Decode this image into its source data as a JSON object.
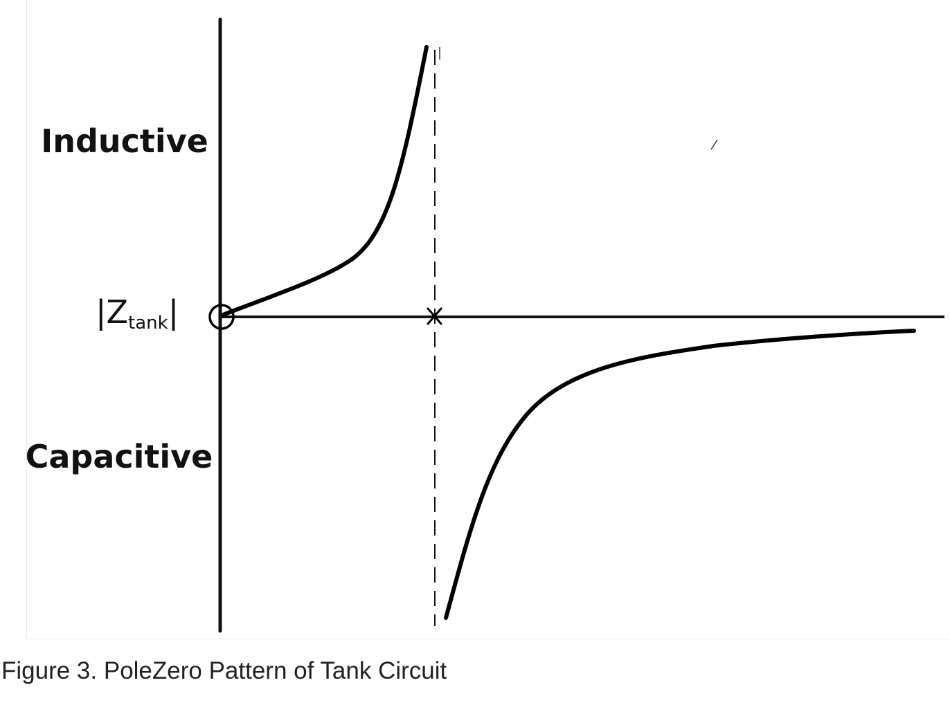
{
  "figure": {
    "region_labels": {
      "inductive": "Inductive",
      "capacitive": "Capacitive"
    },
    "axis_label": {
      "prefix": "|Z",
      "subscript": "tank",
      "suffix": "|"
    },
    "markers": {
      "zero_symbol": "circle",
      "pole_symbol": "cross"
    },
    "colors": {
      "ink": "#111111",
      "caption": "#222222",
      "frame": "#e6e6e6"
    }
  },
  "caption": "Figure 3. PoleZero Pattern of Tank Circuit"
}
